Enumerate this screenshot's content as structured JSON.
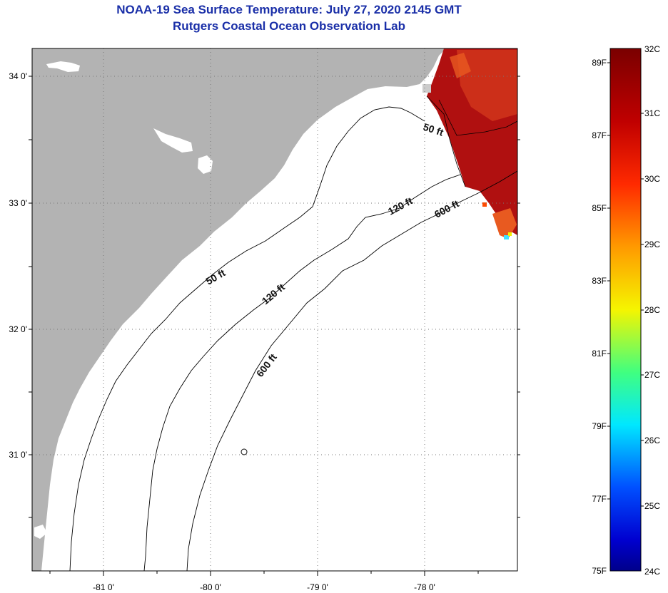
{
  "header": {
    "title": "NOAA-19 Sea Surface Temperature:  July 27, 2020 2145 GMT",
    "subtitle": "Rutgers Coastal Ocean Observation Lab"
  },
  "map": {
    "lat_labels": [
      "34 0'",
      "33 0'",
      "32 0'",
      "31 0'"
    ],
    "lon_labels": [
      "-81 0'",
      "-80 0'",
      "-79 0'",
      "-78 0'"
    ],
    "isobath_labels": [
      "50 ft",
      "50 ft",
      "120 ft",
      "120 ft",
      "600 ft",
      "600 ft"
    ]
  },
  "colorbar": {
    "celsius_labels": [
      "32C",
      "31C",
      "30C",
      "29C",
      "28C",
      "27C",
      "26C",
      "25C",
      "24C"
    ],
    "fahrenheit_labels": [
      "89F",
      "87F",
      "85F",
      "83F",
      "81F",
      "79F",
      "77F",
      "75F"
    ]
  },
  "colors": {
    "land": "#b3b3b3",
    "ocean_no_data": "#ffffff",
    "title": "#1a2fa8",
    "sst_warm": "#b01010"
  }
}
